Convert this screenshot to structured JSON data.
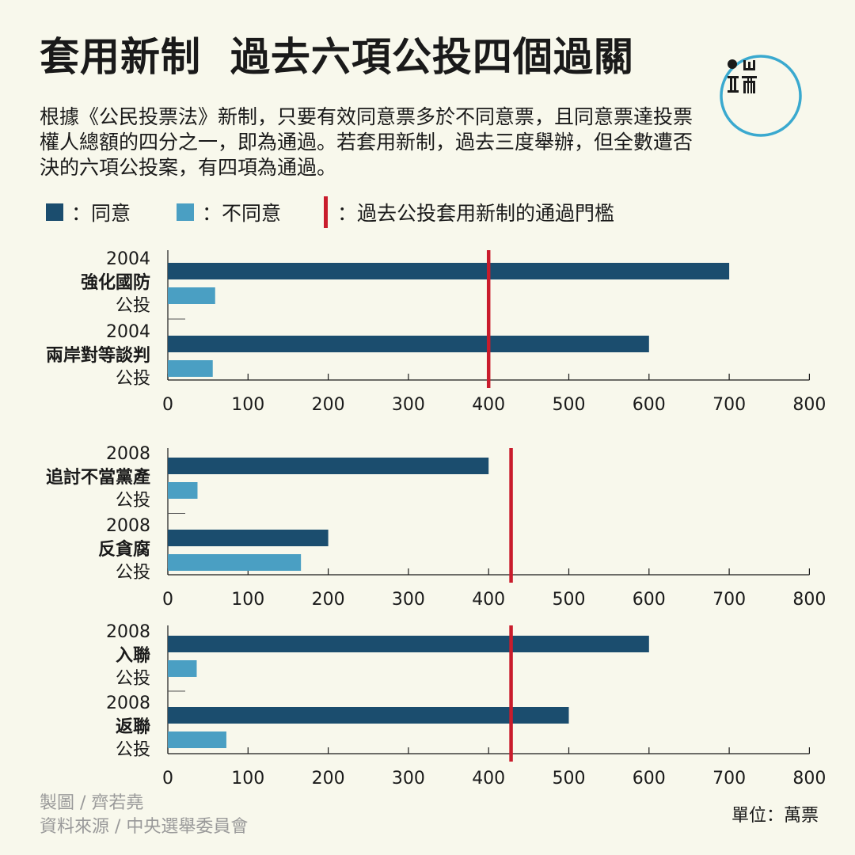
{
  "title": "套用新制  過去六項公投四個過關",
  "intro": "根據《公民投票法》新制，只要有效同意票多於不同意票，且同意票達投票權人總額的四分之一，即為通過。若套用新制，過去三度舉辦，但全數遭否決的六項公投案，有四項為通過。",
  "legend": {
    "agree_label": "：同意",
    "disagree_label": "：不同意",
    "threshold_label": "：過去公投套用新制的通過門檻"
  },
  "colors": {
    "agree": "#1b4d6e",
    "disagree": "#4a9fc3",
    "threshold": "#c91c2c",
    "background": "#f8f8ec",
    "logo": "#3aa9cf"
  },
  "footer": {
    "credit": "製圖 / 齊若堯",
    "source": "資料來源 / 中央選舉委員會"
  },
  "unit": "單位：萬票",
  "chart_data": [
    {
      "type": "bar",
      "orientation": "horizontal",
      "xlim": [
        0,
        800
      ],
      "ticks": [
        "0",
        "100",
        "200",
        "300",
        "400",
        "500",
        "600",
        "700",
        "800"
      ],
      "threshold": 400,
      "referenda": [
        {
          "year": "2004",
          "name": "強化國防",
          "suffix": "公投",
          "agree": 700,
          "disagree": 59
        },
        {
          "year": "2004",
          "name": "兩岸對等談判",
          "suffix": "公投",
          "agree": 600,
          "disagree": 56
        }
      ]
    },
    {
      "type": "bar",
      "orientation": "horizontal",
      "xlim": [
        0,
        800
      ],
      "ticks": [
        "0",
        "100",
        "200",
        "300",
        "400",
        "500",
        "600",
        "700",
        "800"
      ],
      "threshold": 428,
      "referenda": [
        {
          "year": "2008",
          "name": "追討不當黨產",
          "suffix": "公投",
          "agree": 400,
          "disagree": 37
        },
        {
          "year": "2008",
          "name": "反貪腐",
          "suffix": "公投",
          "agree": 200,
          "disagree": 166
        }
      ]
    },
    {
      "type": "bar",
      "orientation": "horizontal",
      "xlim": [
        0,
        800
      ],
      "ticks": [
        "0",
        "100",
        "200",
        "300",
        "400",
        "500",
        "600",
        "700",
        "800"
      ],
      "threshold": 428,
      "referenda": [
        {
          "year": "2008",
          "name": "入聯",
          "suffix": "公投",
          "agree": 600,
          "disagree": 36
        },
        {
          "year": "2008",
          "name": "返聯",
          "suffix": "公投",
          "agree": 500,
          "disagree": 73
        }
      ]
    }
  ]
}
